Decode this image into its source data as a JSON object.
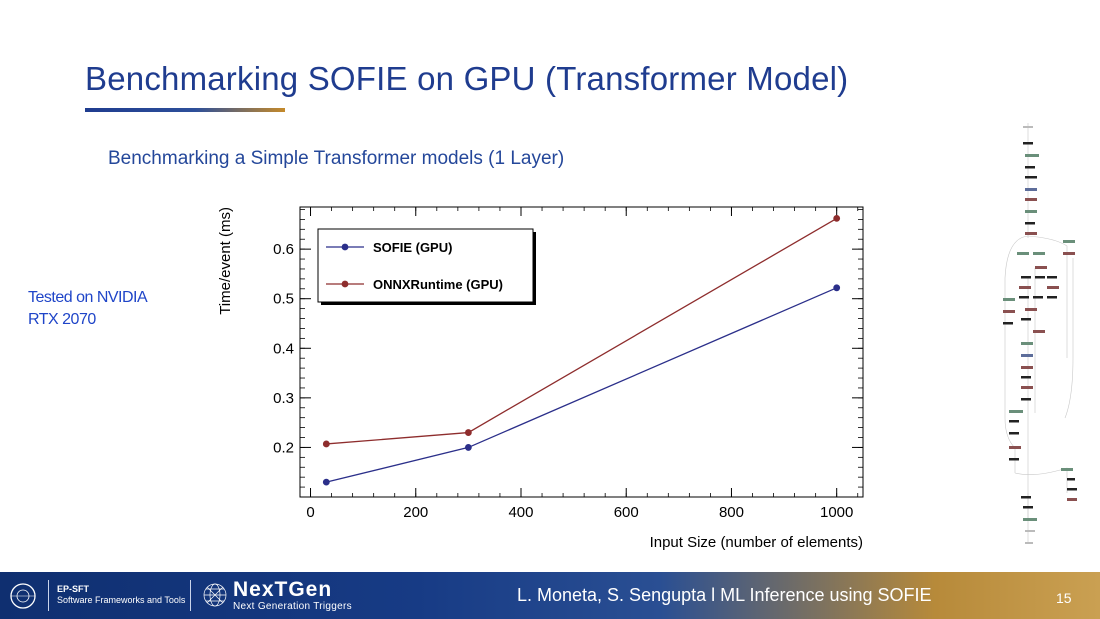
{
  "slide": {
    "title": "Benchmarking SOFIE on GPU (Transformer Model)",
    "subtitle": "Benchmarking a Simple Transformer models (1 Layer)",
    "note_lines": [
      "Tested on NVIDIA",
      "RTX 2070"
    ]
  },
  "footer": {
    "dept_line1": "EP-SFT",
    "dept_line2": "Software Frameworks and Tools",
    "nextgen_title": "NexTGen",
    "nextgen_subtitle": "Next Generation Triggers",
    "credit": "L. Moneta, S. Sengupta l   ML Inference using SOFIE",
    "page_number": "15",
    "colors": {
      "left": "#0f2f70",
      "right": "#caa052"
    }
  },
  "chart_data": {
    "type": "line",
    "title": "",
    "xlabel": "Input Size (number of elements)",
    "ylabel": "Time/event (ms)",
    "xlim": [
      -20,
      1050
    ],
    "ylim": [
      0.1,
      0.685
    ],
    "xticks": [
      0,
      200,
      400,
      600,
      800,
      1000
    ],
    "yticks": [
      0.2,
      0.3,
      0.4,
      0.5,
      0.6
    ],
    "grid": false,
    "legend": "top-left",
    "series": [
      {
        "name": "SOFIE (GPU)",
        "color": "#2b2f8a",
        "x": [
          30,
          300,
          1000
        ],
        "y": [
          0.13,
          0.2,
          0.522
        ]
      },
      {
        "name": "ONNXRuntime (GPU)",
        "color": "#8e2d2d",
        "x": [
          30,
          300,
          1000
        ],
        "y": [
          0.207,
          0.23,
          0.662
        ]
      }
    ]
  }
}
